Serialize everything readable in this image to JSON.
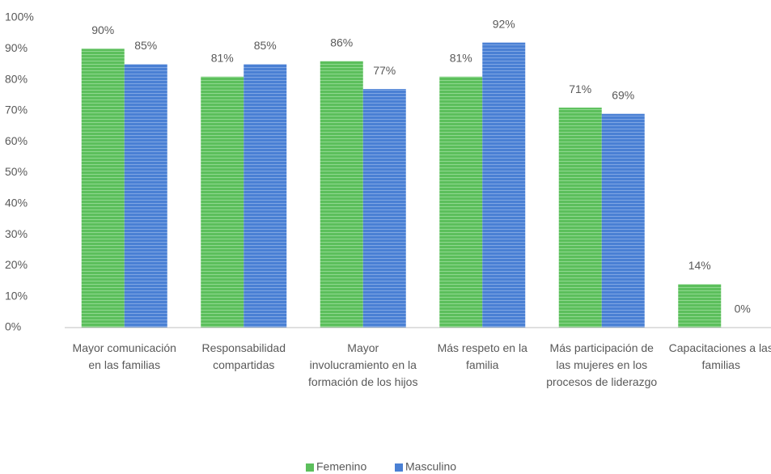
{
  "chart_data": {
    "type": "bar",
    "categories": [
      "Mayor comunicación en las familias",
      "Responsabilidad compartidas",
      "Mayor involucramiento en la formación de los hijos",
      "Más respeto en la familia",
      "Más participación de las mujeres en los procesos de liderazgo",
      "Capacitaciones a las familias"
    ],
    "series": [
      {
        "name": "Femenino",
        "color": "#5cbf5c",
        "values": [
          90,
          81,
          86,
          81,
          71,
          14
        ],
        "value_labels": [
          "90%",
          "81%",
          "86%",
          "81%",
          "71%",
          "14%"
        ]
      },
      {
        "name": "Masculino",
        "color": "#4a80d4",
        "values": [
          85,
          85,
          77,
          92,
          69,
          0
        ],
        "value_labels": [
          "85%",
          "85%",
          "77%",
          "92%",
          "69%",
          "0%"
        ]
      }
    ],
    "ylim": [
      0,
      100
    ],
    "yticks": [
      {
        "value": 0,
        "label": "0%"
      },
      {
        "value": 10,
        "label": "10%"
      },
      {
        "value": 20,
        "label": "20%"
      },
      {
        "value": 30,
        "label": "30%"
      },
      {
        "value": 40,
        "label": "40%"
      },
      {
        "value": 50,
        "label": "50%"
      },
      {
        "value": 60,
        "label": "60%"
      },
      {
        "value": 70,
        "label": "70%"
      },
      {
        "value": 80,
        "label": "80%"
      },
      {
        "value": 90,
        "label": "90%"
      },
      {
        "value": 100,
        "label": "100%"
      }
    ],
    "grid": false,
    "legend": "bottom"
  }
}
